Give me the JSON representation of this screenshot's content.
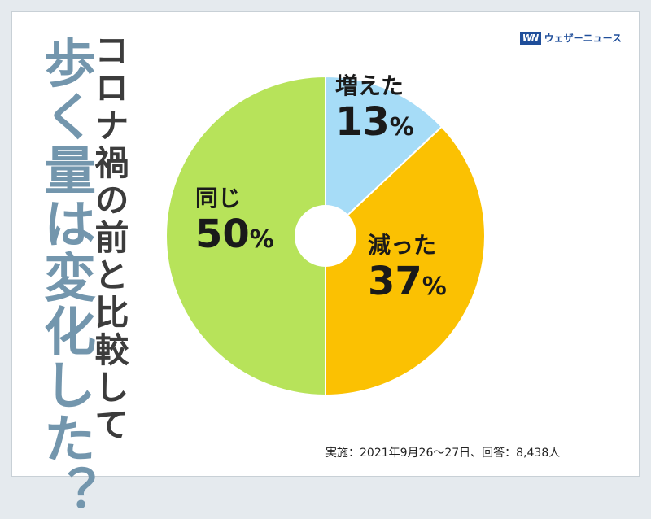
{
  "subtitle": "コロナ禍の前と比較して",
  "title": "歩く量は変化した？",
  "brand": {
    "mark": "WN",
    "name": "ウェザーニュース"
  },
  "footnote": "実施：2021年9月26〜27日、回答：8,438人",
  "chart_data": {
    "type": "pie",
    "slices": [
      {
        "label": "増えた",
        "value": 13,
        "color": "#a6dcf7"
      },
      {
        "label": "減った",
        "value": 37,
        "color": "#fbc102"
      },
      {
        "label": "同じ",
        "value": 50,
        "color": "#b7e35a"
      }
    ],
    "unit": "%",
    "donut_hole": true
  }
}
